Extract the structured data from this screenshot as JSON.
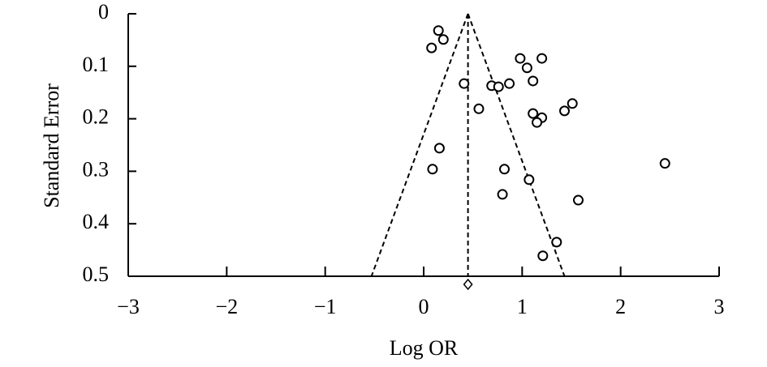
{
  "chart_data": {
    "type": "scatter",
    "xlabel": "Log OR",
    "ylabel": "Standard Error",
    "x": [
      0.15,
      0.2,
      0.08,
      0.98,
      1.2,
      1.05,
      0.41,
      0.69,
      0.76,
      0.87,
      1.11,
      0.56,
      1.11,
      1.43,
      1.51,
      1.2,
      1.15,
      0.16,
      0.09,
      0.82,
      2.45,
      1.07,
      0.8,
      1.57,
      1.35,
      1.21
    ],
    "y": [
      0.032,
      0.049,
      0.065,
      0.085,
      0.085,
      0.103,
      0.133,
      0.137,
      0.139,
      0.133,
      0.128,
      0.181,
      0.19,
      0.185,
      0.171,
      0.198,
      0.207,
      0.256,
      0.296,
      0.296,
      0.285,
      0.316,
      0.344,
      0.355,
      0.435,
      0.461
    ],
    "xlim": [
      -3,
      3
    ],
    "ylim": [
      0,
      0.5
    ],
    "y_inverted": true,
    "xticks": [
      {
        "value": -3,
        "label": "−3"
      },
      {
        "value": -2,
        "label": "−2"
      },
      {
        "value": -1,
        "label": "−1"
      },
      0,
      1,
      2,
      3
    ],
    "yticks": [
      0,
      0.1,
      0.2,
      0.3,
      0.4,
      0.5
    ],
    "pooled_estimate": 0.45,
    "funnel_limits_at_max_se": [
      -0.53,
      1.43
    ]
  }
}
